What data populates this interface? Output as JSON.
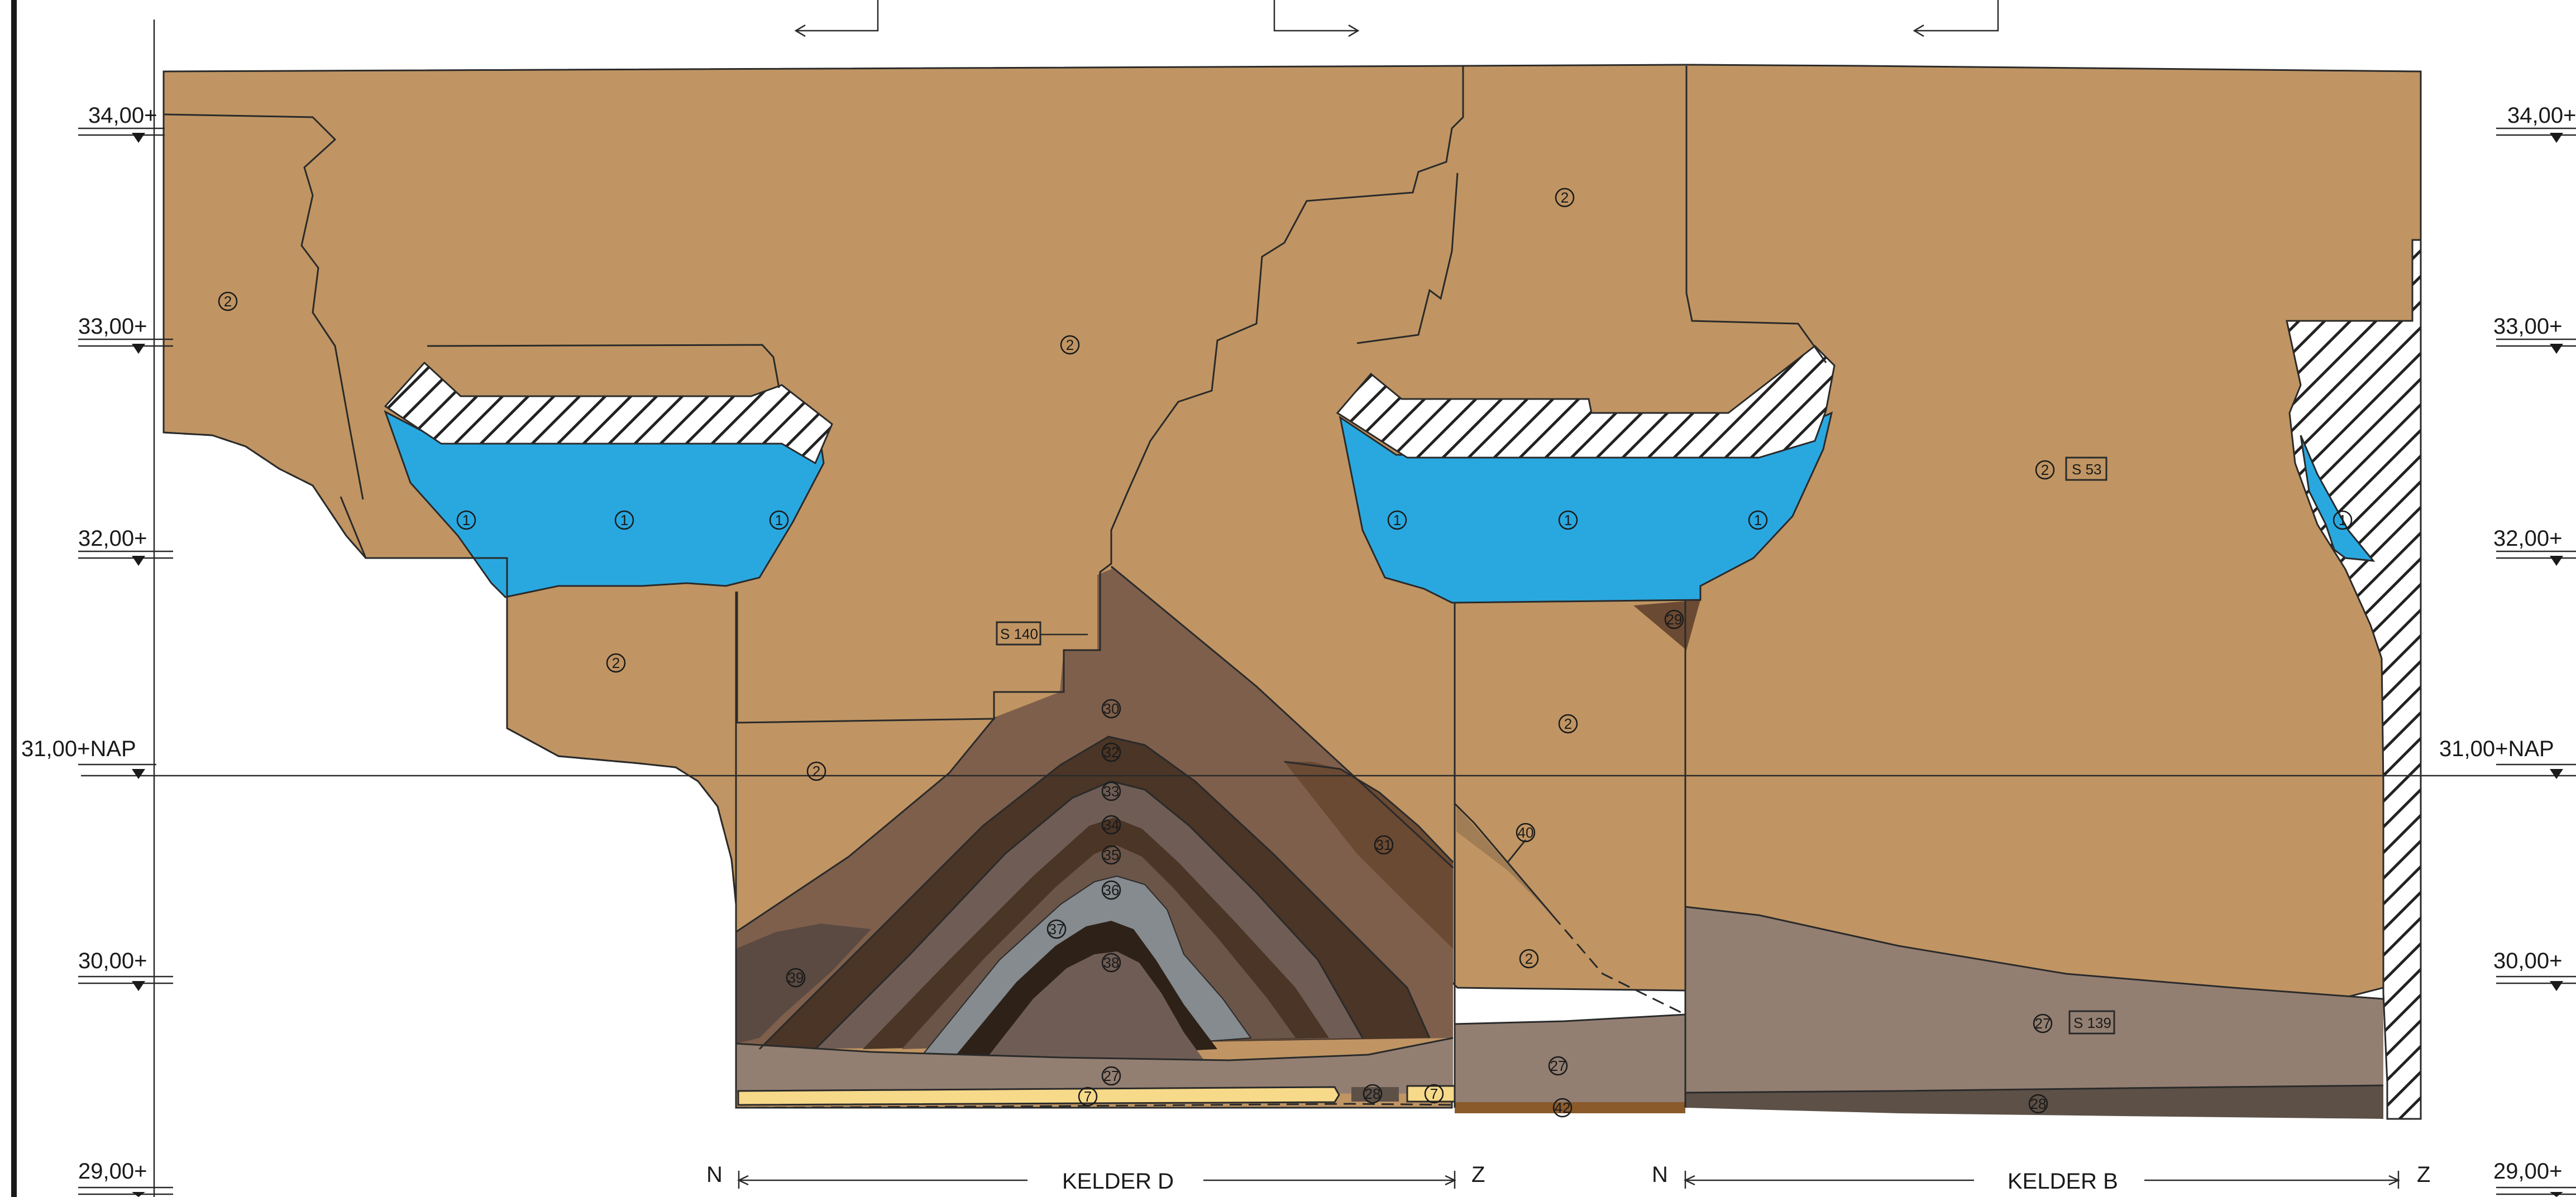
{
  "levels": {
    "l34_left": "34,00+",
    "l34_right": "34,00+",
    "l33_left": "33,00+",
    "l33_right": "33,00+",
    "l32_left": "32,00+",
    "l32_right": "32,00+",
    "l31_left": "31,00+NAP",
    "l31_right": "31,00+NAP",
    "l30_left": "30,00+",
    "l30_right": "30,00+",
    "l29_left": "29,00+",
    "l29_right": "29,00+"
  },
  "kelder_d": {
    "name": "KELDER D",
    "north": "N",
    "south": "Z"
  },
  "kelder_b": {
    "name": "KELDER B",
    "north": "N",
    "south": "Z"
  },
  "samples": {
    "s140": "S 140",
    "s53": "S 53",
    "s139": "S 139"
  },
  "layers": {
    "n1a": "1",
    "n1b": "1",
    "n1c": "1",
    "n1d": "1",
    "n1e": "1",
    "n1f": "1",
    "n1g": "1",
    "n2a": "2",
    "n2b": "2",
    "n2c": "2",
    "n2d": "2",
    "n2e": "2",
    "n2f": "2",
    "n2g": "2",
    "n2h": "2",
    "n7a": "7",
    "n7b": "7",
    "n27a": "27",
    "n27b": "27",
    "n27c": "27",
    "n28a": "28",
    "n28b": "28",
    "n29": "29",
    "n30": "30",
    "n31": "31",
    "n32": "32",
    "n33": "33",
    "n34": "34",
    "n35": "35",
    "n36": "36",
    "n37": "37",
    "n38": "38",
    "n39": "39",
    "n40": "40",
    "n42": "42"
  },
  "colors": {
    "sand": "#c09563",
    "water": "#29a8e0",
    "brown": "#7e5f4b",
    "dark_brown": "#4a3526",
    "mid_brown": "#6b4a33",
    "grey": "#858b8e",
    "taupe": "#937f72",
    "mauve": "#6f5d55",
    "yellow": "#f7d98a",
    "rust": "#8b5a2b"
  }
}
